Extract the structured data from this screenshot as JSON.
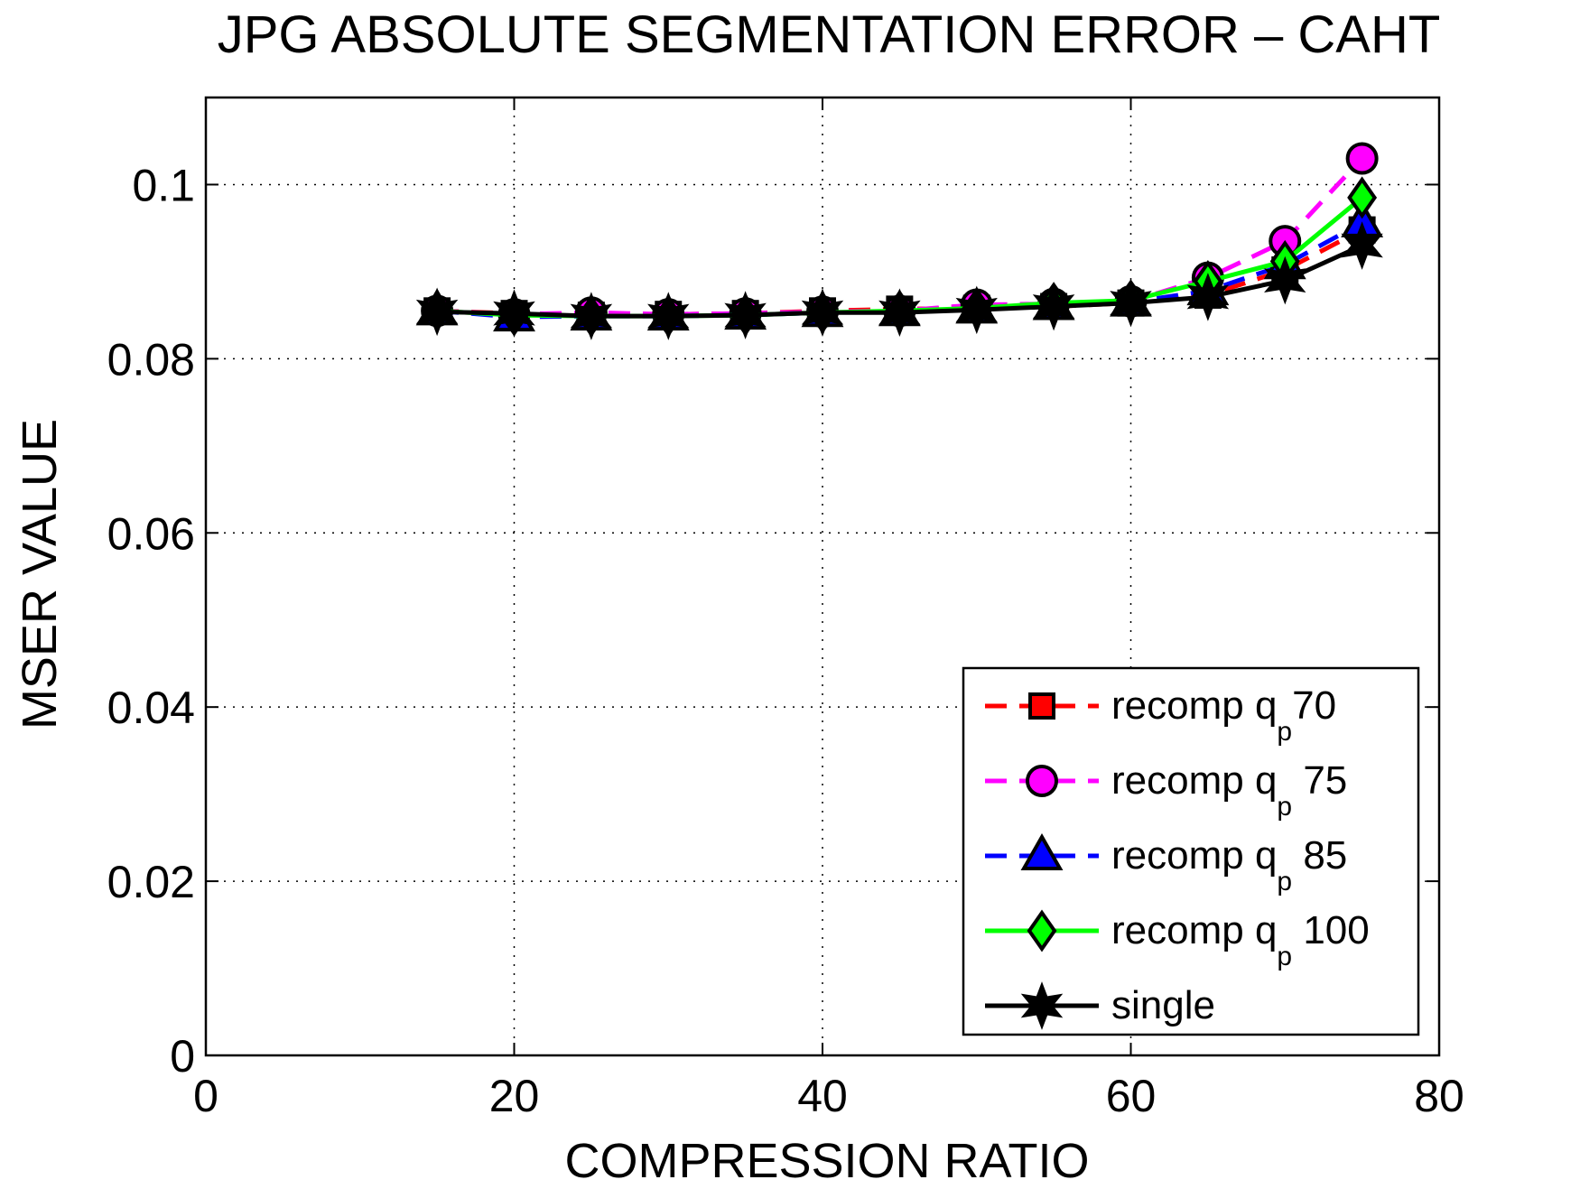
{
  "chart_data": {
    "type": "line",
    "title": "JPG ABSOLUTE SEGMENTATION ERROR – CAHT",
    "xlabel": "COMPRESSION RATIO",
    "ylabel": "MSER VALUE",
    "xlim": [
      0,
      80
    ],
    "ylim": [
      0,
      0.11
    ],
    "xticks": [
      0,
      20,
      40,
      60,
      80
    ],
    "xtick_labels": [
      "0",
      "20",
      "40",
      "60",
      "80"
    ],
    "yticks": [
      0,
      0.02,
      0.04,
      0.06,
      0.08,
      0.1
    ],
    "ytick_labels": [
      "0",
      "0.02",
      "0.04",
      "0.06",
      "0.08",
      "0.1"
    ],
    "grid": true,
    "legend_position": "bottom-right",
    "x": [
      15,
      20,
      25,
      30,
      35,
      40,
      45,
      50,
      55,
      60,
      65,
      70,
      75
    ],
    "series": [
      {
        "name": "recomp q",
        "name_sub": "p",
        "name_suffix": "70",
        "color": "#ff0000",
        "line": "dashed",
        "marker": "square",
        "values": [
          0.0855,
          0.0852,
          0.085,
          0.0851,
          0.0852,
          0.0855,
          0.0857,
          0.0858,
          0.086,
          0.0864,
          0.0873,
          0.0902,
          0.0948
        ]
      },
      {
        "name": "recomp q",
        "name_sub": "p",
        "name_suffix": " 75",
        "color": "#ff00ff",
        "line": "dashed",
        "marker": "circle",
        "values": [
          0.0855,
          0.0851,
          0.0853,
          0.0851,
          0.0852,
          0.0854,
          0.0855,
          0.0862,
          0.0863,
          0.0866,
          0.0893,
          0.0935,
          0.103
        ]
      },
      {
        "name": "recomp q",
        "name_sub": "p",
        "name_suffix": " 85",
        "color": "#0000ff",
        "line": "dashed",
        "marker": "triangle",
        "values": [
          0.0855,
          0.0848,
          0.0849,
          0.0849,
          0.085,
          0.0853,
          0.0854,
          0.0857,
          0.0861,
          0.0865,
          0.0878,
          0.0908,
          0.0956
        ]
      },
      {
        "name": "recomp q",
        "name_sub": "p",
        "name_suffix": " 100",
        "color": "#00ff00",
        "line": "solid",
        "marker": "diamond",
        "values": [
          0.0855,
          0.085,
          0.0849,
          0.0849,
          0.085,
          0.0853,
          0.0855,
          0.0858,
          0.0864,
          0.0867,
          0.0889,
          0.0912,
          0.0985
        ]
      },
      {
        "name": "single",
        "name_sub": "",
        "name_suffix": "",
        "color": "#000000",
        "line": "solid",
        "marker": "star",
        "values": [
          0.0854,
          0.0852,
          0.0849,
          0.0849,
          0.085,
          0.0853,
          0.0853,
          0.0856,
          0.086,
          0.0864,
          0.0871,
          0.089,
          0.093
        ]
      }
    ]
  }
}
